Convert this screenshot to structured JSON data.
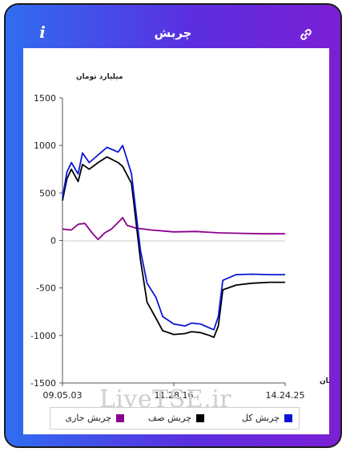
{
  "header": {
    "title": "چربش",
    "info_label": "i"
  },
  "watermark": "LiveTSE.ir",
  "chart_data": {
    "type": "line",
    "ylabel": "میلیارد تومان",
    "xlabel": "زمان",
    "ylim": [
      -1500,
      1500
    ],
    "yticks": [
      1500,
      1000,
      500,
      0,
      -500,
      -1000,
      -1500
    ],
    "xticks": [
      "09.05.03",
      "11.28.16",
      "14.24.25"
    ],
    "x_range": [
      "09.05.03",
      "14.24.25"
    ],
    "series": [
      {
        "name": "چربش کل",
        "color": "#0a16d6",
        "points": [
          [
            0,
            450
          ],
          [
            0.02,
            720
          ],
          [
            0.04,
            820
          ],
          [
            0.07,
            700
          ],
          [
            0.09,
            920
          ],
          [
            0.12,
            820
          ],
          [
            0.16,
            900
          ],
          [
            0.2,
            980
          ],
          [
            0.25,
            930
          ],
          [
            0.27,
            1000
          ],
          [
            0.28,
            930
          ],
          [
            0.31,
            700
          ],
          [
            0.35,
            -100
          ],
          [
            0.38,
            -450
          ],
          [
            0.42,
            -600
          ],
          [
            0.45,
            -800
          ],
          [
            0.5,
            -880
          ],
          [
            0.55,
            -900
          ],
          [
            0.58,
            -870
          ],
          [
            0.62,
            -880
          ],
          [
            0.66,
            -920
          ],
          [
            0.68,
            -940
          ],
          [
            0.7,
            -800
          ],
          [
            0.72,
            -420
          ],
          [
            0.78,
            -360
          ],
          [
            0.85,
            -355
          ],
          [
            0.93,
            -360
          ],
          [
            1,
            -360
          ]
        ]
      },
      {
        "name": "چربش صف",
        "color": "#000000",
        "points": [
          [
            0,
            420
          ],
          [
            0.02,
            650
          ],
          [
            0.04,
            750
          ],
          [
            0.07,
            620
          ],
          [
            0.09,
            800
          ],
          [
            0.12,
            750
          ],
          [
            0.16,
            820
          ],
          [
            0.2,
            880
          ],
          [
            0.25,
            820
          ],
          [
            0.27,
            780
          ],
          [
            0.31,
            600
          ],
          [
            0.35,
            -200
          ],
          [
            0.38,
            -650
          ],
          [
            0.42,
            -820
          ],
          [
            0.45,
            -950
          ],
          [
            0.5,
            -990
          ],
          [
            0.55,
            -980
          ],
          [
            0.58,
            -960
          ],
          [
            0.62,
            -970
          ],
          [
            0.66,
            -1000
          ],
          [
            0.68,
            -1020
          ],
          [
            0.7,
            -900
          ],
          [
            0.72,
            -520
          ],
          [
            0.78,
            -470
          ],
          [
            0.85,
            -450
          ],
          [
            0.93,
            -440
          ],
          [
            1,
            -440
          ]
        ]
      },
      {
        "name": "چربش جاری",
        "color": "#8a008a",
        "points": [
          [
            0,
            120
          ],
          [
            0.04,
            110
          ],
          [
            0.07,
            170
          ],
          [
            0.1,
            180
          ],
          [
            0.14,
            60
          ],
          [
            0.16,
            10
          ],
          [
            0.19,
            80
          ],
          [
            0.22,
            120
          ],
          [
            0.25,
            190
          ],
          [
            0.27,
            240
          ],
          [
            0.29,
            160
          ],
          [
            0.33,
            130
          ],
          [
            0.4,
            110
          ],
          [
            0.5,
            90
          ],
          [
            0.6,
            95
          ],
          [
            0.7,
            80
          ],
          [
            0.8,
            75
          ],
          [
            0.9,
            70
          ],
          [
            1,
            70
          ]
        ]
      }
    ],
    "legend": [
      "چربش کل",
      "چربش صف",
      "چربش جاری"
    ],
    "legend_colors": [
      "#0a16d6",
      "#000000",
      "#8a008a"
    ]
  }
}
